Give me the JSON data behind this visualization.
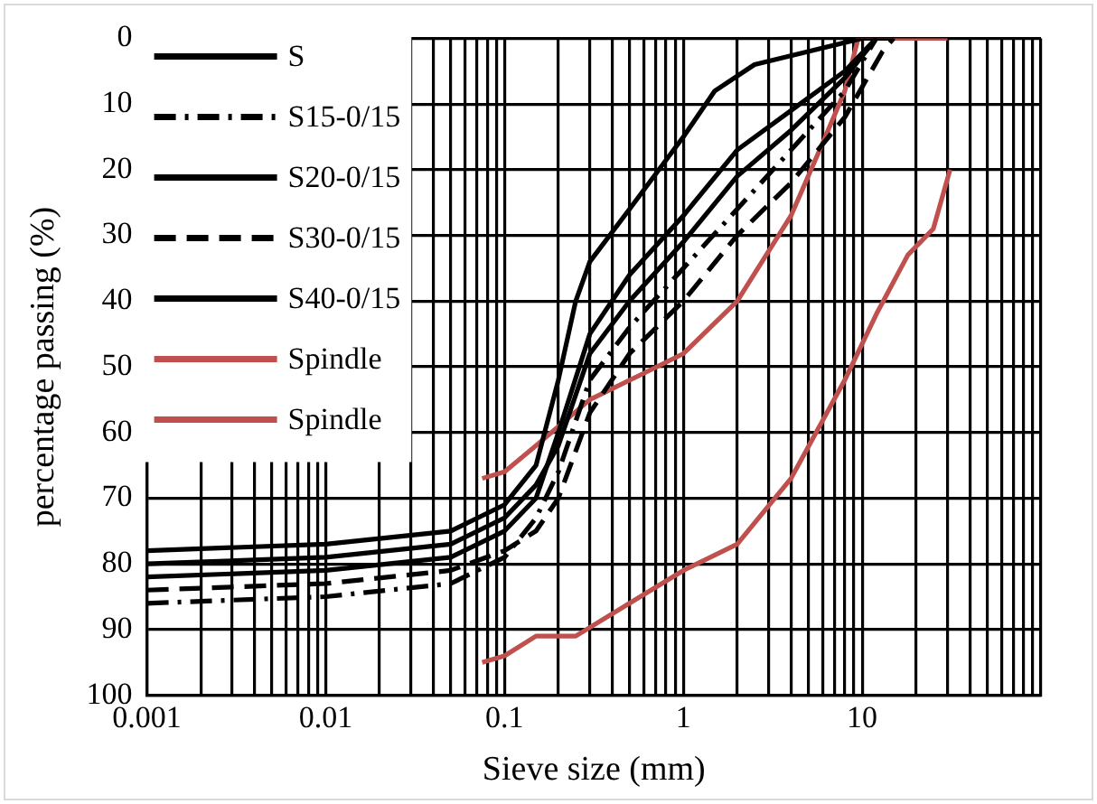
{
  "chart_data": {
    "type": "line",
    "xlabel": "Sieve size (mm)",
    "ylabel": "percentage passing (%)",
    "log": "x",
    "xlim": [
      0.001,
      100
    ],
    "xticks": [
      0.001,
      0.01,
      0.1,
      1,
      10
    ],
    "ylim": [
      100,
      0
    ],
    "yticks": [
      0,
      10,
      20,
      30,
      40,
      50,
      60,
      70,
      80,
      90,
      100
    ],
    "grid": true,
    "legend": "top left",
    "marker": "none",
    "series": [
      {
        "name": "S",
        "color": "#000000",
        "line_style": "solid",
        "x": [
          0.001,
          0.01,
          0.05,
          0.1,
          0.15,
          0.2,
          0.25,
          0.3,
          0.5,
          1,
          1.5,
          2.5,
          5,
          10,
          15
        ],
        "values": [
          78,
          77,
          75,
          71,
          65,
          52,
          40,
          34,
          26,
          15,
          8,
          4,
          2,
          0,
          0
        ]
      },
      {
        "name": "S15-0/15",
        "color": "#000000",
        "line_style": "dashdot",
        "x": [
          0.001,
          0.01,
          0.05,
          0.1,
          0.15,
          0.2,
          0.3,
          0.5,
          1,
          2,
          4,
          8,
          12
        ],
        "values": [
          86,
          85,
          83,
          79,
          73,
          66,
          52,
          44,
          35,
          26,
          17,
          8,
          0
        ]
      },
      {
        "name": "S20-0/15",
        "color": "#000000",
        "line_style": "solid",
        "x": [
          0.001,
          0.01,
          0.05,
          0.1,
          0.15,
          0.2,
          0.3,
          0.5,
          1,
          2,
          4,
          8,
          12
        ],
        "values": [
          82,
          81,
          79,
          75,
          70,
          60,
          45,
          36,
          27,
          17,
          11,
          5,
          0
        ]
      },
      {
        "name": "S30-0/15",
        "color": "#000000",
        "line_style": "dashed",
        "x": [
          0.001,
          0.01,
          0.05,
          0.1,
          0.15,
          0.2,
          0.3,
          0.5,
          1,
          2,
          4,
          8,
          13,
          15
        ],
        "values": [
          84,
          83,
          81,
          78,
          75,
          70,
          57,
          48,
          40,
          30,
          22,
          12,
          2,
          0
        ]
      },
      {
        "name": "S40-0/15",
        "color": "#000000",
        "line_style": "solid",
        "x": [
          0.001,
          0.01,
          0.05,
          0.1,
          0.15,
          0.2,
          0.3,
          0.5,
          1,
          2,
          4,
          8,
          12
        ],
        "values": [
          80,
          79,
          77,
          73,
          68,
          62,
          48,
          40,
          31,
          21,
          14,
          6,
          0
        ]
      },
      {
        "name": "Spindle",
        "color": "#c0504d",
        "line_style": "solid",
        "x": [
          0.075,
          0.1,
          0.15,
          0.3,
          0.6,
          1,
          2,
          4,
          6,
          8,
          9.5,
          30
        ],
        "values": [
          67,
          66,
          62,
          55,
          51,
          48,
          40,
          27,
          16,
          8,
          0,
          0
        ]
      },
      {
        "name": "Spindle",
        "color": "#c0504d",
        "line_style": "solid",
        "x": [
          0.075,
          0.1,
          0.15,
          0.25,
          0.5,
          1,
          2,
          4,
          8,
          12,
          18,
          25,
          31
        ],
        "values": [
          95,
          94,
          91,
          91,
          86,
          81,
          77,
          67,
          52,
          42,
          33,
          29,
          20
        ]
      }
    ]
  }
}
